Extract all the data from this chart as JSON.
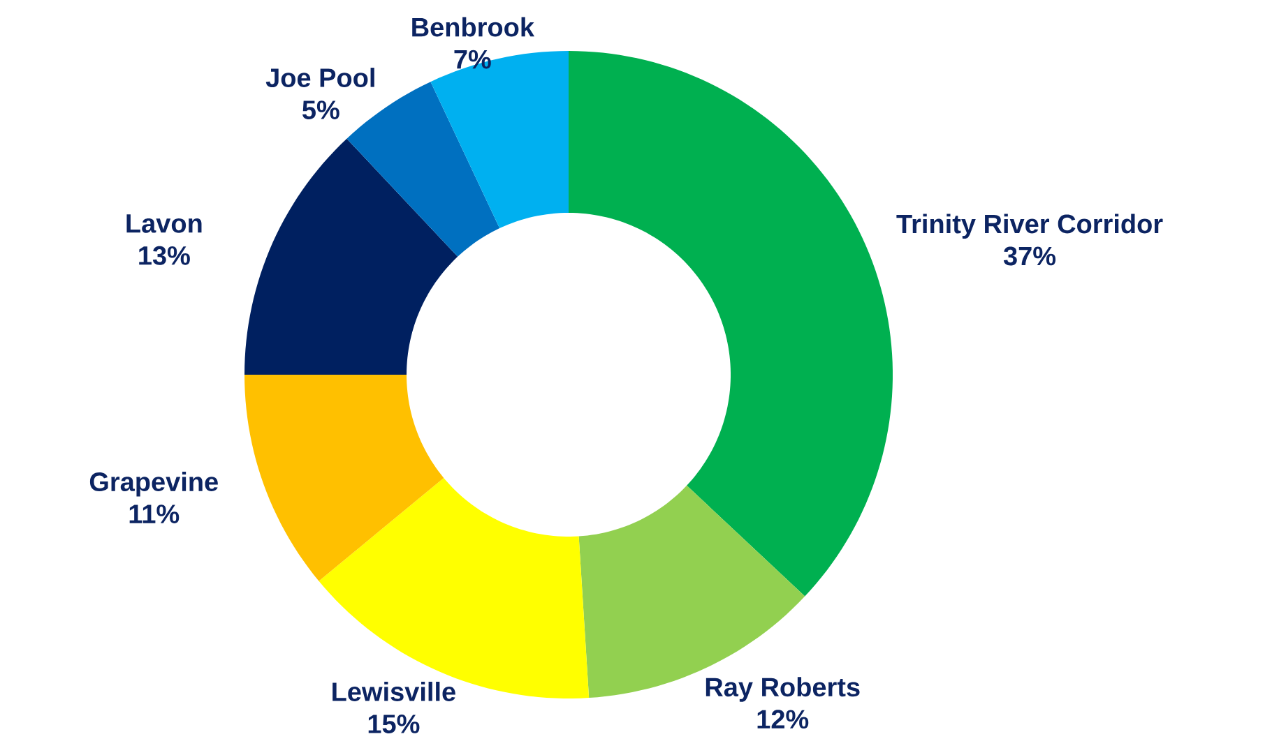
{
  "chart_data": {
    "type": "donut",
    "categories": [
      "Trinity River Corridor",
      "Ray Roberts",
      "Lewisville",
      "Grapevine",
      "Lavon",
      "Joe Pool",
      "Benbrook"
    ],
    "values": [
      37,
      12,
      15,
      11,
      13,
      5,
      7
    ],
    "colors": [
      "#00b050",
      "#92d050",
      "#ffff00",
      "#ffc000",
      "#002060",
      "#0070c0",
      "#00b0f0"
    ],
    "value_labels": [
      "37%",
      "12%",
      "15%",
      "11%",
      "13%",
      "5%",
      "7%"
    ]
  }
}
